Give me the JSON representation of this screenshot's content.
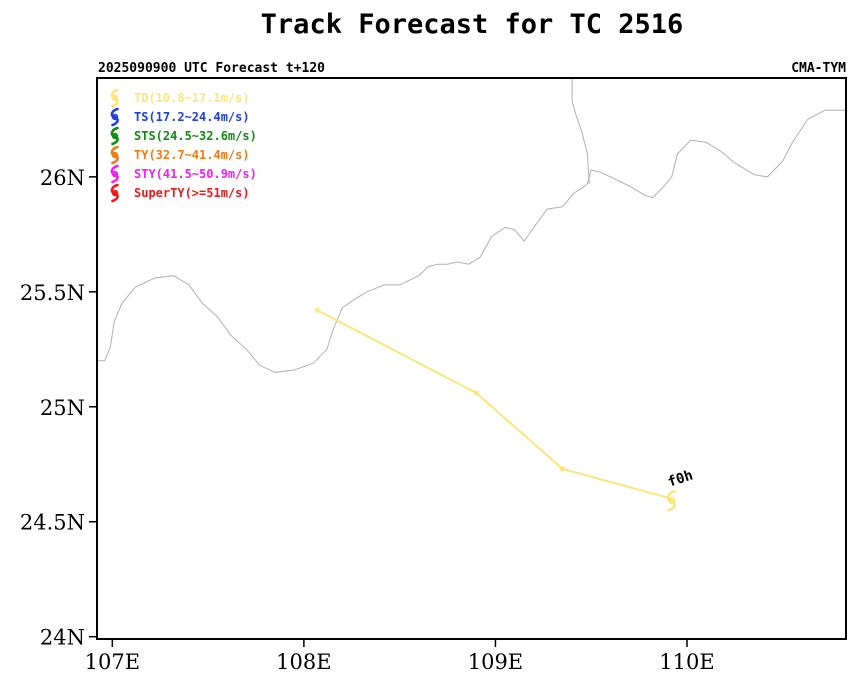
{
  "chart_data": {
    "type": "scatter",
    "title": "Track Forecast for TC 2516",
    "subtitle_left": "2025090900 UTC Forecast t+120",
    "subtitle_right": "CMA-TYM",
    "xlim": [
      106.92,
      110.83
    ],
    "ylim": [
      23.99,
      26.43
    ],
    "x_ticks": [
      {
        "value": 107,
        "label": "107E"
      },
      {
        "value": 108,
        "label": "108E"
      },
      {
        "value": 109,
        "label": "109E"
      },
      {
        "value": 110,
        "label": "110E"
      }
    ],
    "y_ticks": [
      {
        "value": 24,
        "label": "24N"
      },
      {
        "value": 24.5,
        "label": "24.5N"
      },
      {
        "value": 25,
        "label": "25N"
      },
      {
        "value": 25.5,
        "label": "25.5N"
      },
      {
        "value": 26,
        "label": "26N"
      }
    ],
    "legend": [
      {
        "label": "TD(10.8~17.1m/s)",
        "color": "#fbe57a"
      },
      {
        "label": "TS(17.2~24.4m/s)",
        "color": "#1f3fe0"
      },
      {
        "label": "STS(24.5~32.6m/s)",
        "color": "#128a12"
      },
      {
        "label": "TY(32.7~41.4m/s)",
        "color": "#f07a14"
      },
      {
        "label": "STY(41.5~50.9m/s)",
        "color": "#f020f0"
      },
      {
        "label": "SuperTY(>=51m/s)",
        "color": "#f01818"
      }
    ],
    "legend_position": "top-left",
    "track": {
      "color": "#fbe57a",
      "points": [
        {
          "lon": 109.92,
          "lat": 24.6
        },
        {
          "lon": 109.35,
          "lat": 24.73
        },
        {
          "lon": 108.9,
          "lat": 25.06
        },
        {
          "lon": 108.07,
          "lat": 25.42
        }
      ]
    },
    "annotation": {
      "text": "f0h",
      "lon": 109.92,
      "lat": 24.6
    },
    "boundary": {
      "color": "#b0b0b0",
      "lines": [
        [
          [
            106.92,
            25.2
          ],
          [
            106.96,
            25.2
          ],
          [
            106.99,
            25.26
          ],
          [
            107.01,
            25.37
          ],
          [
            107.05,
            25.45
          ],
          [
            107.12,
            25.52
          ],
          [
            107.22,
            25.56
          ],
          [
            107.32,
            25.57
          ],
          [
            107.4,
            25.53
          ],
          [
            107.47,
            25.45
          ],
          [
            107.55,
            25.39
          ],
          [
            107.62,
            25.31
          ],
          [
            107.7,
            25.25
          ],
          [
            107.77,
            25.18
          ],
          [
            107.85,
            25.15
          ],
          [
            107.95,
            25.16
          ],
          [
            108.05,
            25.19
          ],
          [
            108.12,
            25.25
          ],
          [
            108.15,
            25.33
          ],
          [
            108.2,
            25.43
          ],
          [
            108.27,
            25.47
          ],
          [
            108.33,
            25.5
          ],
          [
            108.42,
            25.53
          ],
          [
            108.5,
            25.53
          ],
          [
            108.6,
            25.57
          ],
          [
            108.65,
            25.61
          ],
          [
            108.7,
            25.62
          ],
          [
            108.75,
            25.62
          ],
          [
            108.8,
            25.63
          ],
          [
            108.86,
            25.62
          ],
          [
            108.92,
            25.65
          ],
          [
            108.98,
            25.74
          ],
          [
            109.05,
            25.78
          ],
          [
            109.1,
            25.77
          ],
          [
            109.15,
            25.72
          ],
          [
            109.2,
            25.78
          ],
          [
            109.27,
            25.86
          ],
          [
            109.35,
            25.87
          ],
          [
            109.41,
            25.93
          ],
          [
            109.45,
            25.95
          ],
          [
            109.48,
            25.97
          ],
          [
            109.5,
            26.03
          ],
          [
            109.55,
            26.02
          ],
          [
            109.6,
            26.0
          ],
          [
            109.65,
            25.98
          ],
          [
            109.7,
            25.96
          ],
          [
            109.78,
            25.92
          ],
          [
            109.82,
            25.91
          ],
          [
            109.87,
            25.95
          ],
          [
            109.92,
            26.0
          ],
          [
            109.95,
            26.1
          ],
          [
            110.02,
            26.16
          ],
          [
            110.1,
            26.15
          ],
          [
            110.18,
            26.11
          ],
          [
            110.25,
            26.06
          ],
          [
            110.35,
            26.01
          ],
          [
            110.42,
            26.0
          ],
          [
            110.5,
            26.07
          ],
          [
            110.55,
            26.15
          ],
          [
            110.63,
            26.25
          ],
          [
            110.72,
            26.29
          ],
          [
            110.83,
            26.29
          ]
        ],
        [
          [
            109.49,
            25.97
          ],
          [
            109.48,
            26.1
          ],
          [
            109.45,
            26.2
          ],
          [
            109.42,
            26.27
          ],
          [
            109.4,
            26.33
          ],
          [
            109.4,
            26.43
          ]
        ]
      ]
    }
  }
}
